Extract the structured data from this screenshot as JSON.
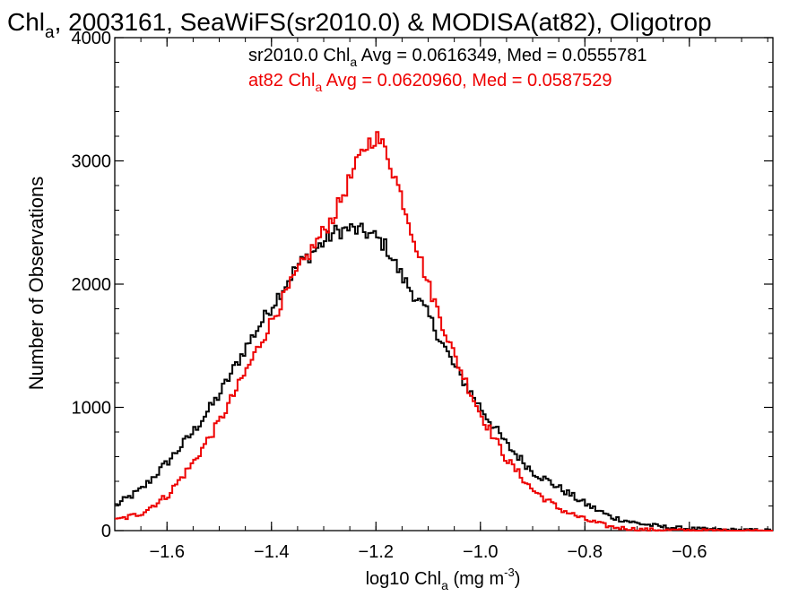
{
  "chart_data": {
    "type": "line",
    "title": "Chl",
    "title_sub": "a",
    "title_rest": ", 2003161, SeaWiFS(sr2010.0) & MODISA(at82), Oligotrop",
    "xlabel_main": "log10 Chl",
    "xlabel_sub": "a",
    "xlabel_unit": " (mg m",
    "xlabel_sup": "-3",
    "xlabel_close": ")",
    "ylabel": "Number of Observations",
    "xlim": [
      -1.7,
      -0.44
    ],
    "ylim": [
      0,
      4000
    ],
    "x_ticks": [
      -1.6,
      -1.4,
      -1.2,
      -1.0,
      -0.8,
      -0.6
    ],
    "x_tick_labels": [
      "−1.6",
      "−1.4",
      "−1.2",
      "−1.0",
      "−0.8",
      "−0.6"
    ],
    "y_ticks": [
      0,
      1000,
      2000,
      3000,
      4000
    ],
    "y_tick_labels": [
      "0",
      "1000",
      "2000",
      "3000",
      "4000"
    ],
    "grid": false,
    "annotations": [
      {
        "color": "#000000",
        "pre": "sr2010.0 Chl",
        "sub": "a",
        "post": " Avg = 0.0616349, Med = 0.0555781"
      },
      {
        "color": "#ee0000",
        "pre": "at82 Chl",
        "sub": "a",
        "post": " Avg = 0.0620960, Med = 0.0587529"
      }
    ],
    "series": [
      {
        "label": "sr2010.0",
        "color": "#000000",
        "x": [
          -1.7,
          -1.65,
          -1.6,
          -1.55,
          -1.5,
          -1.45,
          -1.4,
          -1.35,
          -1.3,
          -1.28,
          -1.25,
          -1.22,
          -1.2,
          -1.18,
          -1.15,
          -1.1,
          -1.05,
          -1.0,
          -0.95,
          -0.9,
          -0.85,
          -0.8,
          -0.75,
          -0.7,
          -0.65,
          -0.6,
          -0.55,
          -0.5,
          -0.44
        ],
        "y": [
          200,
          330,
          550,
          800,
          1100,
          1480,
          1820,
          2150,
          2340,
          2420,
          2450,
          2420,
          2380,
          2300,
          2060,
          1750,
          1330,
          1000,
          700,
          480,
          350,
          220,
          110,
          60,
          30,
          15,
          8,
          4,
          2
        ]
      },
      {
        "label": "at82",
        "color": "#ee0000",
        "x": [
          -1.7,
          -1.65,
          -1.6,
          -1.55,
          -1.5,
          -1.45,
          -1.4,
          -1.35,
          -1.3,
          -1.28,
          -1.25,
          -1.22,
          -1.2,
          -1.18,
          -1.15,
          -1.1,
          -1.05,
          -1.0,
          -0.95,
          -0.9,
          -0.85,
          -0.8,
          -0.75,
          -0.7,
          -0.65,
          -0.6,
          -0.55,
          -0.5,
          -0.44
        ],
        "y": [
          80,
          140,
          280,
          550,
          880,
          1280,
          1700,
          2100,
          2430,
          2560,
          2850,
          3120,
          3200,
          3080,
          2700,
          2000,
          1420,
          950,
          580,
          330,
          180,
          90,
          30,
          10,
          5,
          2,
          1,
          0,
          0
        ]
      }
    ]
  }
}
